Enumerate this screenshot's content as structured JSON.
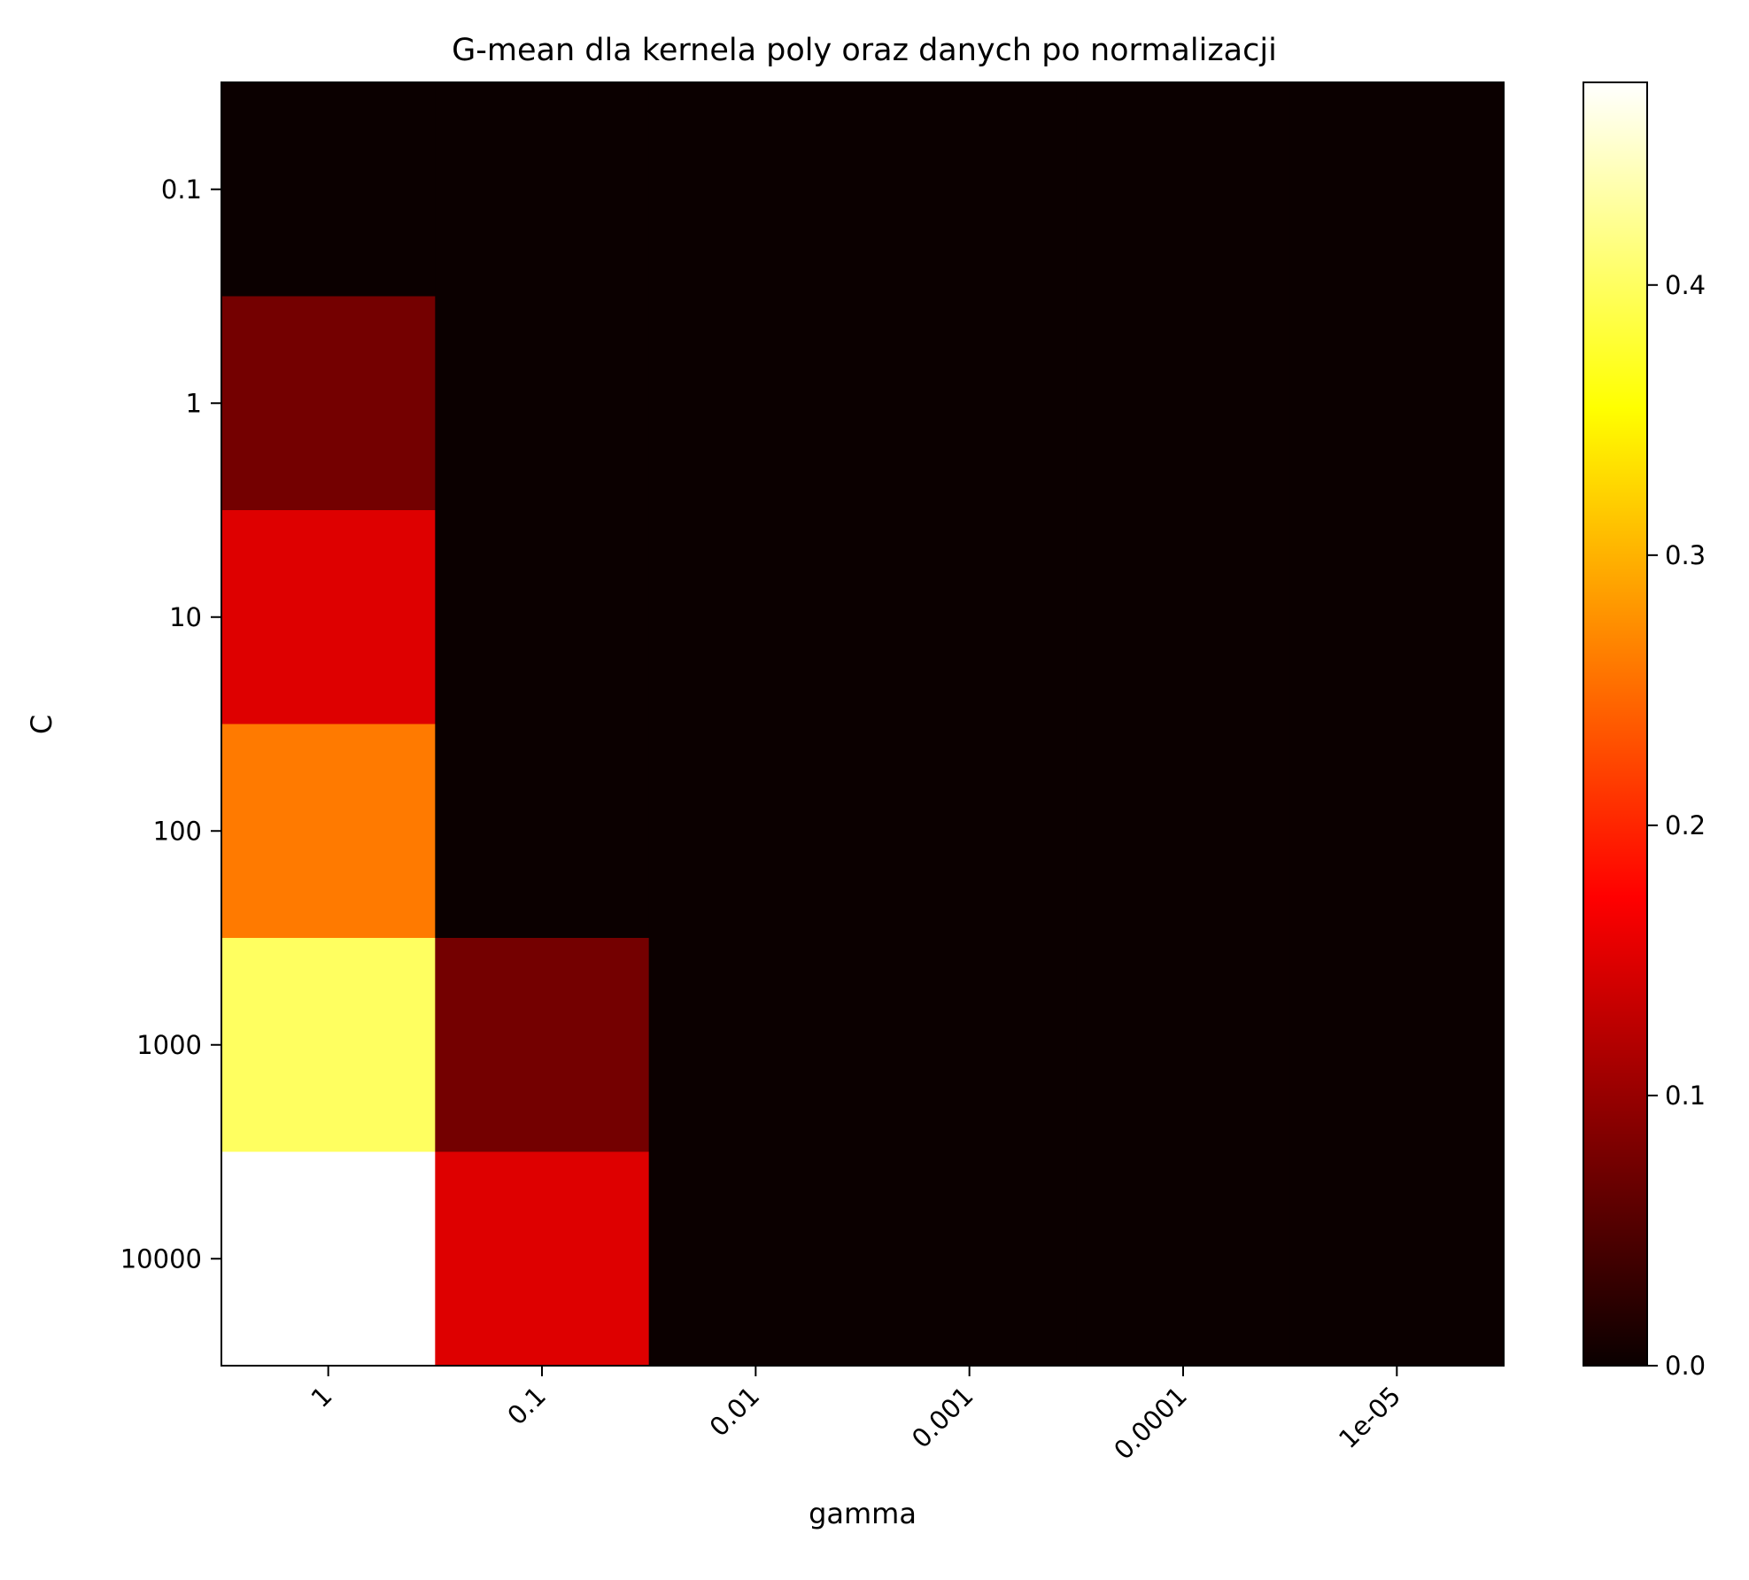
{
  "chart_data": {
    "type": "heatmap",
    "title": "G-mean dla kernela poly oraz danych po normalizacji",
    "xlabel": "gamma",
    "ylabel": "C",
    "x_categories": [
      "1",
      "0.1",
      "0.01",
      "0.001",
      "0.0001",
      "1e-05"
    ],
    "y_categories": [
      "0.1",
      "1",
      "10",
      "100",
      "1000",
      "10000"
    ],
    "values": [
      [
        0.0,
        0.0,
        0.0,
        0.0,
        0.0,
        0.0
      ],
      [
        0.075,
        0.0,
        0.0,
        0.0,
        0.0,
        0.0
      ],
      [
        0.15,
        0.0,
        0.0,
        0.0,
        0.0,
        0.0
      ],
      [
        0.26,
        0.0,
        0.0,
        0.0,
        0.0,
        0.0
      ],
      [
        0.4,
        0.075,
        0.0,
        0.0,
        0.0,
        0.0
      ],
      [
        0.475,
        0.15,
        0.0,
        0.0,
        0.0,
        0.0
      ]
    ],
    "colormap": "hot",
    "vmin": 0.0,
    "vmax": 0.475,
    "colorbar_ticks": [
      0.0,
      0.1,
      0.2,
      0.3,
      0.4
    ],
    "colorbar_tick_labels": [
      "0.0",
      "0.1",
      "0.2",
      "0.3",
      "0.4"
    ],
    "x_tick_rotation": 45
  }
}
